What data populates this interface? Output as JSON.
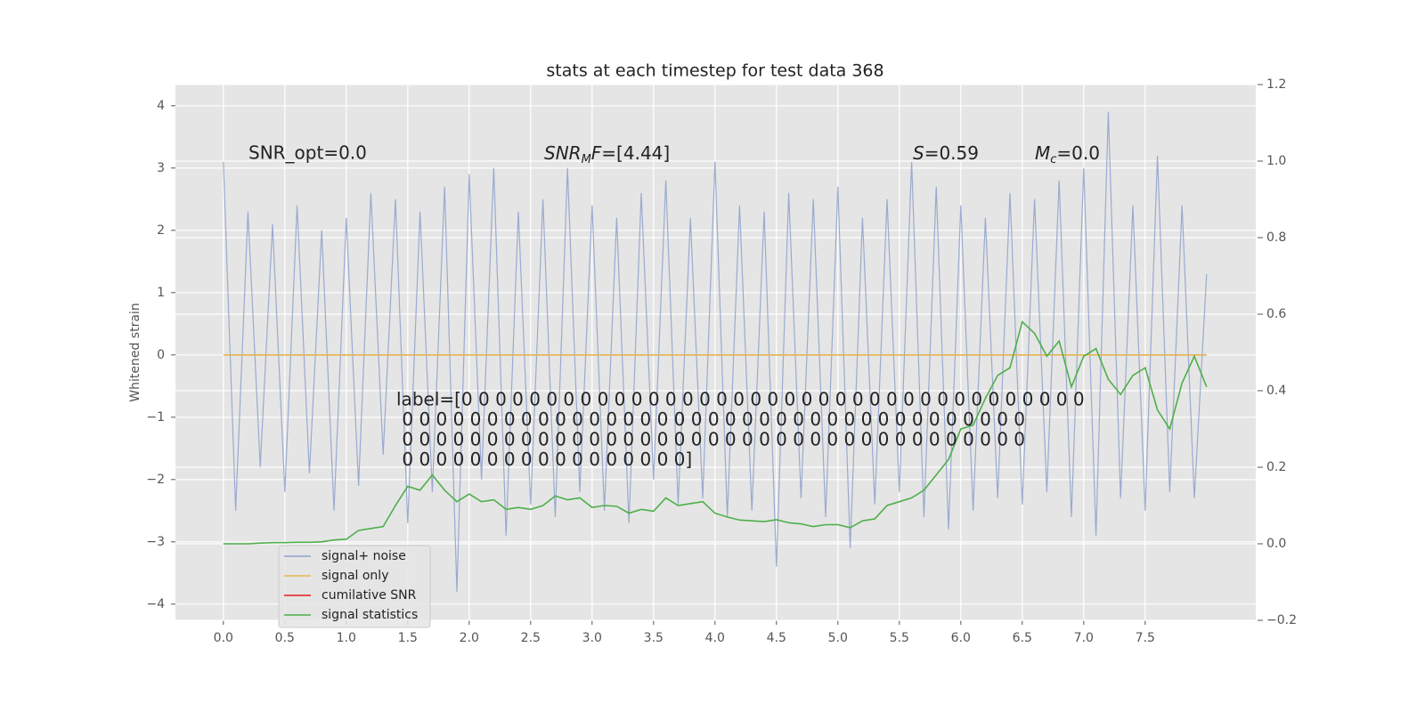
{
  "chart_data": {
    "type": "line",
    "title": "stats at each timestep for test data 368",
    "ylabel": "Whitened strain",
    "x": [
      0.0,
      0.1,
      0.2,
      0.3,
      0.4,
      0.5,
      0.6,
      0.7,
      0.8,
      0.9,
      1.0,
      1.1,
      1.2,
      1.3,
      1.4,
      1.5,
      1.6,
      1.7,
      1.8,
      1.9,
      2.0,
      2.1,
      2.2,
      2.3,
      2.4,
      2.5,
      2.6,
      2.7,
      2.8,
      2.9,
      3.0,
      3.1,
      3.2,
      3.3,
      3.4,
      3.5,
      3.6,
      3.7,
      3.8,
      3.9,
      4.0,
      4.1,
      4.2,
      4.3,
      4.4,
      4.5,
      4.6,
      4.7,
      4.8,
      4.9,
      5.0,
      5.1,
      5.2,
      5.3,
      5.4,
      5.5,
      5.6,
      5.7,
      5.8,
      5.9,
      6.0,
      6.1,
      6.2,
      6.3,
      6.4,
      6.5,
      6.6,
      6.7,
      6.8,
      6.9,
      7.0,
      7.1,
      7.2,
      7.3,
      7.4,
      7.5,
      7.6,
      7.7,
      7.8,
      7.9,
      8.0
    ],
    "series": [
      {
        "name": "signal+ noise",
        "color": "#8da0cb",
        "values": [
          3.1,
          -2.5,
          2.3,
          -1.8,
          2.1,
          -2.2,
          2.4,
          -1.9,
          2.0,
          -2.5,
          2.2,
          -2.1,
          2.6,
          -1.6,
          2.5,
          -2.7,
          2.3,
          -2.2,
          2.7,
          -3.8,
          2.9,
          -2.0,
          3.0,
          -2.9,
          2.3,
          -2.4,
          2.5,
          -2.6,
          3.0,
          -2.2,
          2.4,
          -2.5,
          2.2,
          -2.7,
          2.6,
          -2.0,
          2.8,
          -2.4,
          2.2,
          -2.3,
          3.1,
          -2.6,
          2.4,
          -2.5,
          2.3,
          -3.4,
          2.6,
          -2.3,
          2.5,
          -2.6,
          2.7,
          -3.1,
          2.2,
          -2.4,
          2.5,
          -2.2,
          3.1,
          -2.6,
          2.7,
          -2.8,
          2.4,
          -2.5,
          2.2,
          -2.3,
          2.6,
          -2.4,
          2.5,
          -2.2,
          2.8,
          -2.6,
          3.0,
          -2.9,
          3.9,
          -2.3,
          2.4,
          -2.5,
          3.2,
          -2.2,
          2.4,
          -2.3,
          1.3
        ]
      },
      {
        "name": "signal only",
        "color": "#e5b552",
        "values": [
          0,
          0,
          0,
          0,
          0,
          0,
          0,
          0,
          0,
          0,
          0,
          0,
          0,
          0,
          0,
          0,
          0,
          0,
          0,
          0,
          0,
          0,
          0,
          0,
          0,
          0,
          0,
          0,
          0,
          0,
          0,
          0,
          0,
          0,
          0,
          0,
          0,
          0,
          0,
          0,
          0,
          0,
          0,
          0,
          0,
          0,
          0,
          0,
          0,
          0,
          0,
          0,
          0,
          0,
          0,
          0,
          0,
          0,
          0,
          0,
          0,
          0,
          0,
          0,
          0,
          0,
          0,
          0,
          0,
          0,
          0,
          0,
          0,
          0,
          0,
          0,
          0,
          0,
          0,
          0,
          0
        ]
      },
      {
        "name": "cumilative SNR",
        "color": "#e41a1c"
      },
      {
        "name": "signal statistics",
        "color": "#4daf4a",
        "axis": "y2",
        "values": [
          0,
          0,
          0,
          0.002,
          0.003,
          0.003,
          0.004,
          0.004,
          0.005,
          0.01,
          0.012,
          0.035,
          0.04,
          0.045,
          0.1,
          0.15,
          0.14,
          0.18,
          0.14,
          0.11,
          0.13,
          0.11,
          0.115,
          0.09,
          0.095,
          0.09,
          0.1,
          0.125,
          0.115,
          0.12,
          0.095,
          0.1,
          0.098,
          0.08,
          0.09,
          0.085,
          0.12,
          0.1,
          0.105,
          0.11,
          0.08,
          0.07,
          0.062,
          0.06,
          0.058,
          0.063,
          0.055,
          0.052,
          0.045,
          0.05,
          0.05,
          0.042,
          0.06,
          0.065,
          0.1,
          0.11,
          0.12,
          0.14,
          0.18,
          0.22,
          0.3,
          0.31,
          0.38,
          0.44,
          0.46,
          0.58,
          0.55,
          0.49,
          0.53,
          0.41,
          0.49,
          0.51,
          0.43,
          0.39,
          0.44,
          0.46,
          0.35,
          0.3,
          0.42,
          0.49,
          0.41
        ]
      }
    ],
    "xlim": [
      -0.39,
      8.4
    ],
    "xticks": [
      {
        "value": 0,
        "label": "0.0"
      },
      {
        "value": 0.5,
        "label": "0.5"
      },
      {
        "value": 1,
        "label": "1.0"
      },
      {
        "value": 1.5,
        "label": "1.5"
      },
      {
        "value": 2,
        "label": "2.0"
      },
      {
        "value": 2.5,
        "label": "2.5"
      },
      {
        "value": 3,
        "label": "3.0"
      },
      {
        "value": 3.5,
        "label": "3.5"
      },
      {
        "value": 4,
        "label": "4.0"
      },
      {
        "value": 4.5,
        "label": "4.5"
      },
      {
        "value": 5,
        "label": "5.0"
      },
      {
        "value": 5.5,
        "label": "5.5"
      },
      {
        "value": 6,
        "label": "6.0"
      },
      {
        "value": 6.5,
        "label": "6.5"
      },
      {
        "value": 7,
        "label": "7.0"
      },
      {
        "value": 7.5,
        "label": "7.5"
      }
    ],
    "ylim": [
      -4.26,
      4.34
    ],
    "yticks": [
      {
        "value": -4,
        "label": "−4"
      },
      {
        "value": -3,
        "label": "−3"
      },
      {
        "value": -2,
        "label": "−2"
      },
      {
        "value": -1,
        "label": "−1"
      },
      0,
      1,
      2,
      3,
      4
    ],
    "y2lim": [
      -0.2,
      1.2
    ],
    "y2ticks": [
      {
        "value": -0.2,
        "label": "−0.2"
      },
      {
        "value": 0,
        "label": "0.0"
      },
      {
        "value": 0.2,
        "label": "0.2"
      },
      {
        "value": 0.4,
        "label": "0.4"
      },
      {
        "value": 0.6,
        "label": "0.6"
      },
      {
        "value": 0.8,
        "label": "0.8"
      },
      {
        "value": 1,
        "label": "1.0"
      },
      {
        "value": 1.2,
        "label": "1.2"
      }
    ],
    "grid": true,
    "legend": "lower left",
    "annotations": {
      "snr_opt": "SNR_opt=0.0",
      "snr_mf": {
        "main": "SNR",
        "sub": "M",
        "tail": "F",
        "value": "=[4.44]"
      },
      "s": {
        "main": "S",
        "value": "=0.59"
      },
      "mc": {
        "main": "M",
        "sub": "c",
        "value": "=0.0"
      },
      "label_lines": [
        "label=[0 0 0 0 0 0 0 0 0 0 0 0 0 0 0 0 0 0 0 0 0 0 0 0 0 0 0 0 0 0 0 0 0 0 0 0 0",
        " 0 0 0 0 0 0 0 0 0 0 0 0 0 0 0 0 0 0 0 0 0 0 0 0 0 0 0 0 0 0 0 0 0 0 0 0 0",
        " 0 0 0 0 0 0 0 0 0 0 0 0 0 0 0 0 0 0 0 0 0 0 0 0 0 0 0 0 0 0 0 0 0 0 0 0 0",
        " 0 0 0 0 0 0 0 0 0 0 0 0 0 0 0 0 0]"
      ]
    }
  }
}
